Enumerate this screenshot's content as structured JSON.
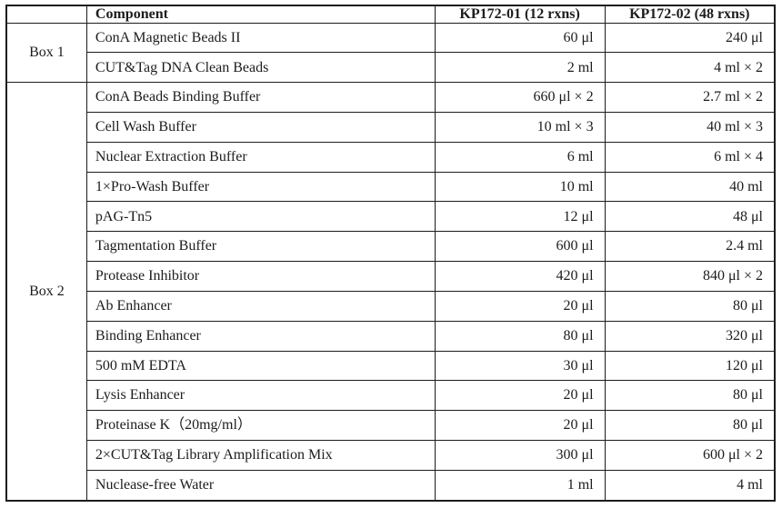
{
  "colors": {
    "border": "#1c1c1c",
    "text": "#1c1c1c",
    "background": "#ffffff"
  },
  "table": {
    "headers": [
      "",
      "Component",
      "KP172-01 (12 rxns)",
      "KP172-02 (48 rxns)"
    ],
    "groups": [
      {
        "label": "Box 1",
        "rows": [
          {
            "component": "ConA Magnetic Beads II",
            "kp172_01": "60 μl",
            "kp172_02": "240 μl"
          },
          {
            "component": "CUT&Tag DNA Clean Beads",
            "kp172_01": "2 ml",
            "kp172_02": "4 ml × 2"
          }
        ]
      },
      {
        "label": "Box 2",
        "rows": [
          {
            "component": "ConA Beads Binding Buffer",
            "kp172_01": "660 μl × 2",
            "kp172_02": "2.7 ml × 2"
          },
          {
            "component": "Cell Wash Buffer",
            "kp172_01": "10 ml × 3",
            "kp172_02": "40 ml × 3"
          },
          {
            "component": "Nuclear Extraction Buffer",
            "kp172_01": "6 ml",
            "kp172_02": "6 ml × 4"
          },
          {
            "component": "1×Pro-Wash Buffer",
            "kp172_01": "10 ml",
            "kp172_02": "40 ml"
          },
          {
            "component": "pAG-Tn5",
            "kp172_01": "12 μl",
            "kp172_02": "48 μl"
          },
          {
            "component": "Tagmentation Buffer",
            "kp172_01": "600 μl",
            "kp172_02": "2.4 ml"
          },
          {
            "component": "Protease Inhibitor",
            "kp172_01": "420 μl",
            "kp172_02": "840 μl × 2"
          },
          {
            "component": "Ab Enhancer",
            "kp172_01": "20 μl",
            "kp172_02": "80 μl"
          },
          {
            "component": "Binding Enhancer",
            "kp172_01": "80 μl",
            "kp172_02": "320 μl"
          },
          {
            "component": "500 mM EDTA",
            "kp172_01": "30 μl",
            "kp172_02": "120 μl"
          },
          {
            "component": "Lysis Enhancer",
            "kp172_01": "20 μl",
            "kp172_02": "80 μl"
          },
          {
            "component": "Proteinase K（20mg/ml）",
            "kp172_01": "20 μl",
            "kp172_02": "80 μl"
          },
          {
            "component": "2×CUT&Tag Library Amplification Mix",
            "kp172_01": "300 μl",
            "kp172_02": "600 μl × 2"
          },
          {
            "component": "Nuclease-free Water",
            "kp172_01": "1 ml",
            "kp172_02": "4 ml"
          }
        ]
      }
    ]
  }
}
